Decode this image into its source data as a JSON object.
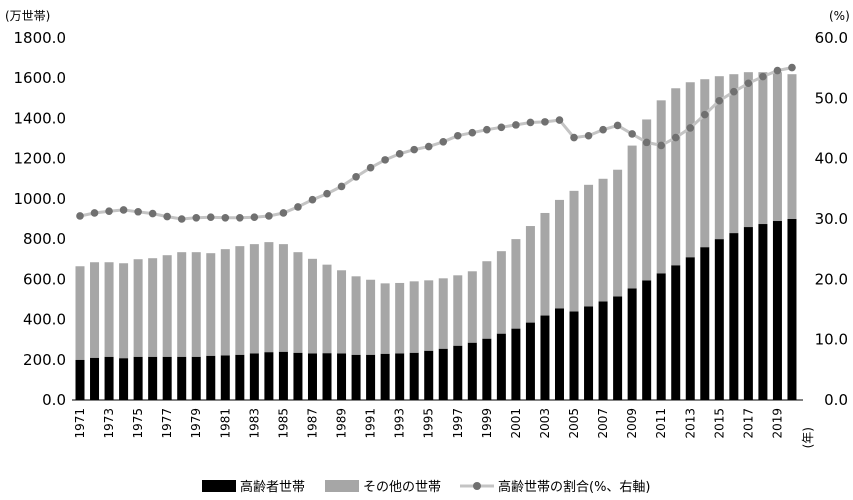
{
  "chart_data": {
    "type": "bar",
    "stacked": true,
    "left_unit": "(万世帯)",
    "right_unit": "(%)",
    "x_unit": "(年)",
    "ylim_left": [
      0,
      1800
    ],
    "ylim_right": [
      0,
      60
    ],
    "y_ticks_left": [
      "0.0",
      "200.0",
      "400.0",
      "600.0",
      "800.0",
      "1000.0",
      "1200.0",
      "1400.0",
      "1600.0",
      "1800.0"
    ],
    "y_ticks_right": [
      "0.0",
      "10.0",
      "20.0",
      "30.0",
      "40.0",
      "50.0",
      "60.0"
    ],
    "x": [
      1971,
      1972,
      1973,
      1974,
      1975,
      1976,
      1977,
      1978,
      1979,
      1980,
      1981,
      1982,
      1983,
      1984,
      1985,
      1986,
      1987,
      1988,
      1989,
      1990,
      1991,
      1992,
      1993,
      1994,
      1995,
      1996,
      1997,
      1998,
      1999,
      2000,
      2001,
      2002,
      2003,
      2004,
      2005,
      2006,
      2007,
      2008,
      2009,
      2010,
      2011,
      2012,
      2013,
      2014,
      2015,
      2016,
      2017,
      2018,
      2019,
      2020
    ],
    "x_tick_labels": [
      "1971",
      "1973",
      "1975",
      "1977",
      "1979",
      "1981",
      "1983",
      "1985",
      "1987",
      "1989",
      "1991",
      "1993",
      "1995",
      "1997",
      "1999",
      "2001",
      "2003",
      "2005",
      "2007",
      "2009",
      "2011",
      "2013",
      "2015",
      "2017",
      "2019"
    ],
    "series": [
      {
        "name": "高齢者世帯",
        "axis": "left",
        "color": "#000000",
        "values": [
          200,
          210,
          215,
          208,
          215,
          215,
          215,
          215,
          215,
          220,
          222,
          225,
          232,
          238,
          240,
          235,
          232,
          233,
          232,
          225,
          225,
          230,
          232,
          235,
          245,
          255,
          270,
          285,
          305,
          330,
          355,
          385,
          420,
          455,
          440,
          465,
          490,
          515,
          555,
          595,
          630,
          670,
          710,
          760,
          800,
          830,
          860,
          875,
          890,
          900
        ]
      },
      {
        "name": "その他の世帯",
        "axis": "left",
        "color": "#a6a6a6",
        "values": [
          465,
          475,
          470,
          472,
          485,
          490,
          505,
          520,
          520,
          510,
          528,
          540,
          543,
          547,
          535,
          500,
          470,
          440,
          413,
          390,
          373,
          350,
          350,
          355,
          350,
          350,
          350,
          355,
          385,
          410,
          445,
          480,
          510,
          540,
          600,
          605,
          610,
          630,
          710,
          800,
          860,
          880,
          870,
          835,
          810,
          790,
          770,
          755,
          740,
          720
        ]
      },
      {
        "name": "高齢世帯の割合(%、右軸)",
        "axis": "right",
        "color": "#c4c4c4",
        "marker_color": "#707070",
        "values": [
          30.5,
          31.0,
          31.3,
          31.5,
          31.2,
          30.9,
          30.4,
          30.0,
          30.2,
          30.3,
          30.2,
          30.2,
          30.3,
          30.5,
          31.0,
          32.0,
          33.2,
          34.2,
          35.4,
          37.0,
          38.5,
          39.8,
          40.8,
          41.5,
          42.0,
          42.8,
          43.8,
          44.3,
          44.8,
          45.2,
          45.6,
          46.0,
          46.1,
          46.4,
          43.5,
          43.8,
          44.8,
          45.5,
          44.1,
          42.7,
          42.2,
          43.5,
          45.1,
          47.3,
          49.6,
          51.1,
          52.5,
          53.6,
          54.6,
          55.1
        ]
      }
    ]
  }
}
